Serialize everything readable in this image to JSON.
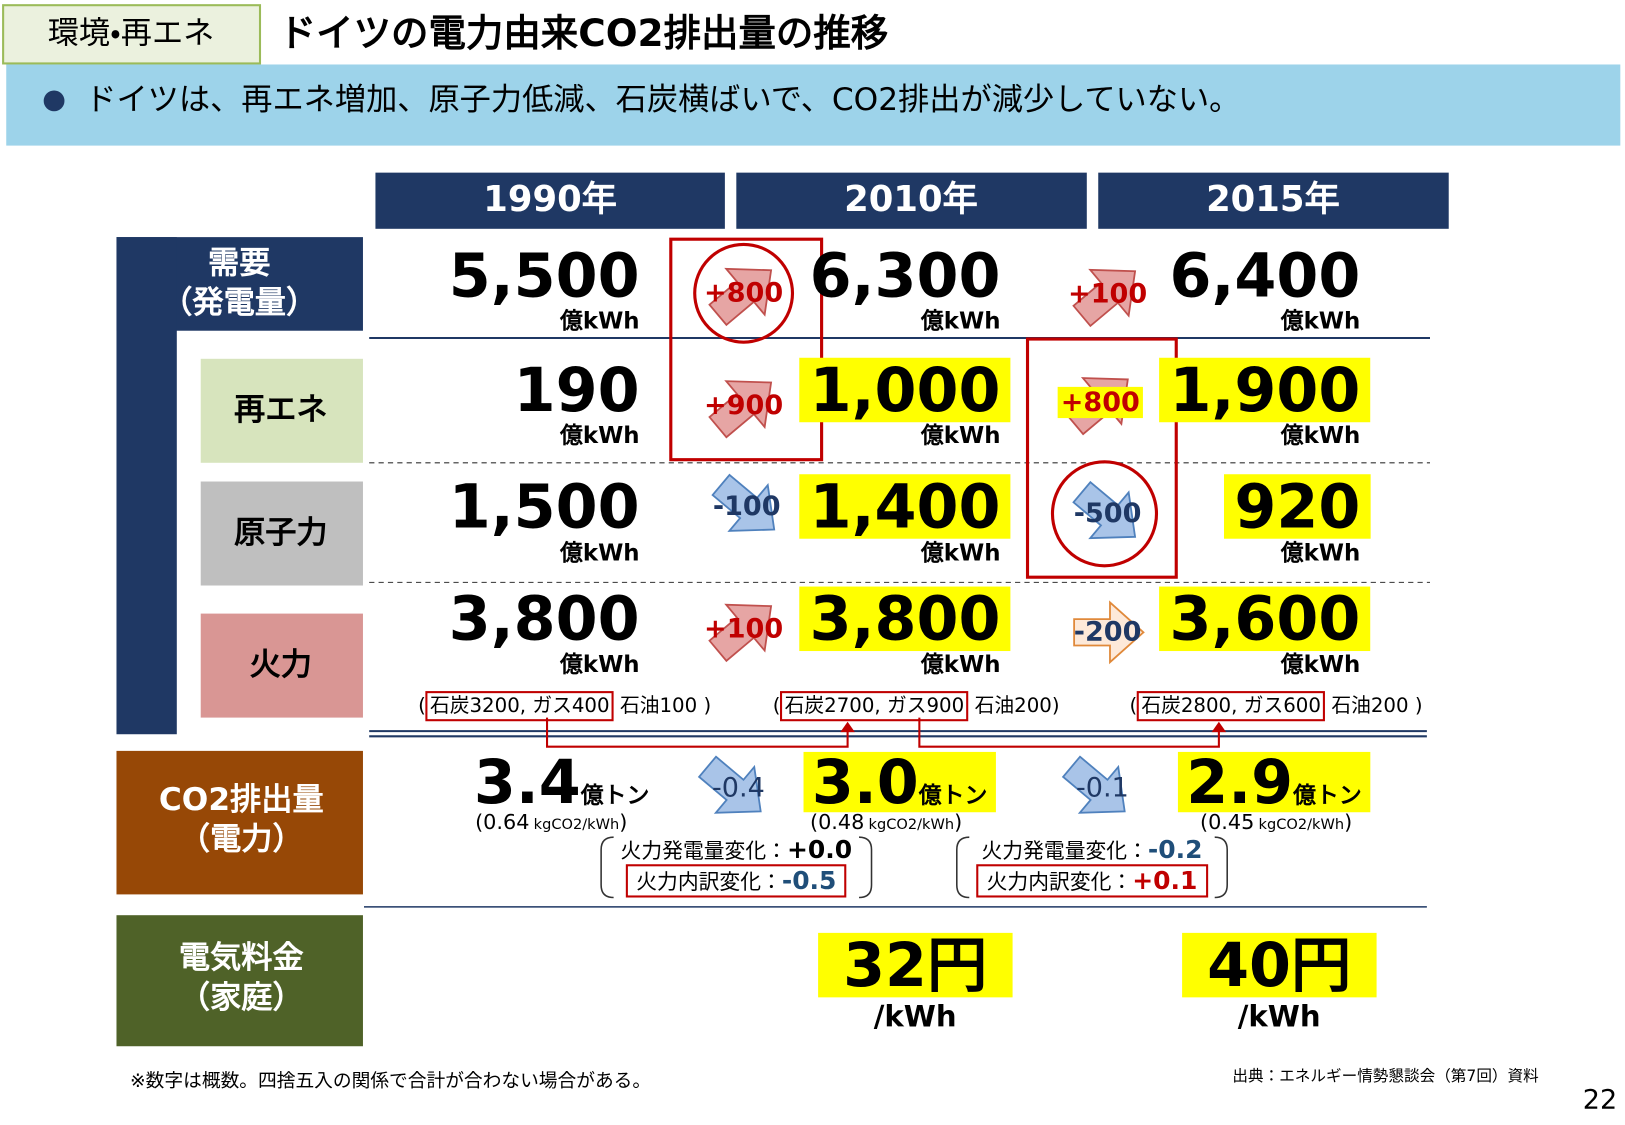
{
  "header": {
    "tag": "環境・再エネ",
    "title": "ドイツの電力由来CO2排出量の推移"
  },
  "summary": "ドイツは、再エネ増加、原子力低減、石炭横ばいで、CO2排出が減少していない。",
  "years": [
    "1990年",
    "2010年",
    "2015年"
  ],
  "rows": [
    {
      "label": [
        "需要",
        "（発電量）"
      ],
      "values": [
        "5,500",
        "6,300",
        "6,400"
      ],
      "unit": "億kWh",
      "changes": [
        "+800",
        "+100"
      ]
    },
    {
      "label": [
        "再エネ"
      ],
      "values": [
        "190",
        "1,000",
        "1,900"
      ],
      "unit": "億kWh",
      "changes": [
        "+900",
        "+800"
      ]
    },
    {
      "label": [
        "原子力"
      ],
      "values": [
        "1,500",
        "1,400",
        "920"
      ],
      "unit": "億kWh",
      "changes": [
        "-100",
        "-500"
      ]
    },
    {
      "label": [
        "火力"
      ],
      "values": [
        "3,800",
        "3,800",
        "3,600"
      ],
      "unit": "億kWh",
      "changes": [
        "+100",
        "-200"
      ]
    }
  ],
  "breakdown": [
    {
      "open": "(",
      "highlight": "石炭3200, ガス400",
      "rest": "石油100 )"
    },
    {
      "open": "(",
      "highlight": "石炭2700, ガス900",
      "rest": "石油200)"
    },
    {
      "open": "(",
      "highlight": "石炭2800, ガス600",
      "rest": "石油200 )"
    }
  ],
  "co2": {
    "label": [
      "CO2排出量",
      "（電力）"
    ],
    "values": [
      "3.4",
      "3.0",
      "2.9"
    ],
    "unit": "億トン",
    "intensity": [
      "(0.64",
      "(0.48",
      "(0.45"
    ],
    "intensity_unit": "kgCO2/kWh",
    "close": ")",
    "changes": [
      "-0.4",
      "-0.1"
    ],
    "factors": [
      [
        {
          "label": "火力発電量変化：",
          "value": "+0.0"
        },
        {
          "label": "火力内訳変化：",
          "value": "-0.5"
        }
      ],
      [
        {
          "label": "火力発電量変化：",
          "value": "-0.2"
        },
        {
          "label": "火力内訳変化：",
          "value": "+0.1"
        }
      ]
    ]
  },
  "price": {
    "label": [
      "電気料金",
      "（家庭）"
    ],
    "values": [
      "32円",
      "40円"
    ],
    "unit": "/kWh"
  },
  "footer": {
    "note": "※数字は概数。四捨五入の関係で合計が合わない場合がある。",
    "source": "出典：エネルギー情勢懇談会（第7回）資料",
    "page": "22"
  }
}
